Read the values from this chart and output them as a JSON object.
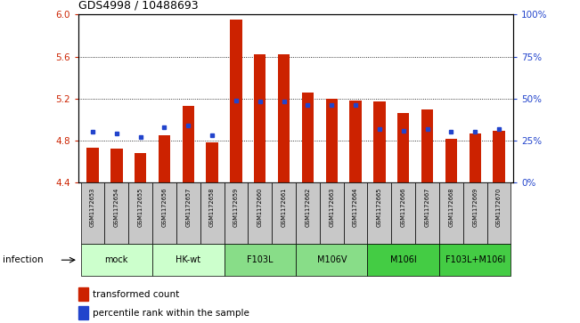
{
  "title": "GDS4998 / 10488693",
  "samples": [
    "GSM1172653",
    "GSM1172654",
    "GSM1172655",
    "GSM1172656",
    "GSM1172657",
    "GSM1172658",
    "GSM1172659",
    "GSM1172660",
    "GSM1172661",
    "GSM1172662",
    "GSM1172663",
    "GSM1172664",
    "GSM1172665",
    "GSM1172666",
    "GSM1172667",
    "GSM1172668",
    "GSM1172669",
    "GSM1172670"
  ],
  "transformed_count": [
    4.73,
    4.72,
    4.68,
    4.85,
    5.13,
    4.78,
    5.95,
    5.62,
    5.62,
    5.26,
    5.2,
    5.18,
    5.17,
    5.06,
    5.1,
    4.82,
    4.87,
    4.89
  ],
  "percentile_rank": [
    30,
    29,
    27,
    33,
    34,
    28,
    49,
    48,
    48,
    46,
    46,
    46,
    32,
    31,
    32,
    30,
    30,
    32
  ],
  "groups": [
    {
      "label": "mock",
      "color": "#ccffcc",
      "start": 0,
      "end": 3
    },
    {
      "label": "HK-wt",
      "color": "#ccffcc",
      "start": 3,
      "end": 6
    },
    {
      "label": "F103L",
      "color": "#88dd88",
      "start": 6,
      "end": 9
    },
    {
      "label": "M106V",
      "color": "#88dd88",
      "start": 9,
      "end": 12
    },
    {
      "label": "M106I",
      "color": "#44cc44",
      "start": 12,
      "end": 15
    },
    {
      "label": "F103L+M106I",
      "color": "#44cc44",
      "start": 15,
      "end": 18
    }
  ],
  "ylim_left": [
    4.4,
    6.0
  ],
  "ylim_right": [
    0,
    100
  ],
  "yticks_left": [
    4.4,
    4.8,
    5.2,
    5.6,
    6.0
  ],
  "yticks_right": [
    0,
    25,
    50,
    75,
    100
  ],
  "bar_color": "#cc2200",
  "dot_color": "#2244cc",
  "bar_width": 0.5,
  "infection_label": "infection",
  "legend_bar": "transformed count",
  "legend_dot": "percentile rank within the sample",
  "sample_box_color": "#c8c8c8",
  "grid_color": "black",
  "grid_linestyle": ":",
  "grid_linewidth": 0.6
}
